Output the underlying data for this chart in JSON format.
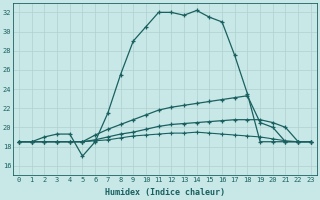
{
  "xlabel": "Humidex (Indice chaleur)",
  "bg_color": "#c8e8e8",
  "grid_color": "#b0d0d0",
  "line_color": "#1a6060",
  "xlim": [
    -0.5,
    23.5
  ],
  "ylim": [
    15,
    33
  ],
  "yticks": [
    16,
    18,
    20,
    22,
    24,
    26,
    28,
    30,
    32
  ],
  "xticks": [
    0,
    1,
    2,
    3,
    4,
    5,
    6,
    7,
    8,
    9,
    10,
    11,
    12,
    13,
    14,
    15,
    16,
    17,
    18,
    19,
    20,
    21,
    22,
    23
  ],
  "curve1_x": [
    0,
    1,
    2,
    3,
    4,
    5,
    6,
    7,
    8,
    9,
    10,
    11,
    12,
    13,
    14,
    15,
    16,
    17,
    18,
    19,
    20,
    21,
    22,
    23
  ],
  "curve1_y": [
    18.5,
    18.5,
    19.0,
    19.3,
    19.3,
    17.0,
    18.5,
    21.5,
    25.5,
    29.0,
    30.5,
    32.0,
    32.0,
    31.7,
    32.2,
    31.5,
    31.0,
    27.5,
    23.5,
    18.5,
    18.5,
    18.5,
    18.5,
    18.5
  ],
  "curve2_x": [
    0,
    1,
    2,
    3,
    4,
    5,
    6,
    7,
    8,
    9,
    10,
    11,
    12,
    13,
    14,
    15,
    16,
    17,
    18,
    19,
    20,
    21,
    22,
    23
  ],
  "curve2_y": [
    18.5,
    18.5,
    18.5,
    18.5,
    18.5,
    18.5,
    19.2,
    19.8,
    20.3,
    20.8,
    21.3,
    21.8,
    22.1,
    22.3,
    22.5,
    22.7,
    22.9,
    23.1,
    23.3,
    20.5,
    20.0,
    18.5,
    18.5,
    18.5
  ],
  "curve3_x": [
    0,
    1,
    2,
    3,
    4,
    5,
    6,
    7,
    8,
    9,
    10,
    11,
    12,
    13,
    14,
    15,
    16,
    17,
    18,
    19,
    20,
    21,
    22,
    23
  ],
  "curve3_y": [
    18.5,
    18.5,
    18.5,
    18.5,
    18.5,
    18.5,
    18.7,
    19.0,
    19.3,
    19.5,
    19.8,
    20.1,
    20.3,
    20.4,
    20.5,
    20.6,
    20.7,
    20.8,
    20.8,
    20.8,
    20.5,
    20.0,
    18.5,
    18.5
  ],
  "curve4_x": [
    0,
    1,
    2,
    3,
    4,
    5,
    6,
    7,
    8,
    9,
    10,
    11,
    12,
    13,
    14,
    15,
    16,
    17,
    18,
    19,
    20,
    21,
    22,
    23
  ],
  "curve4_y": [
    18.5,
    18.5,
    18.5,
    18.5,
    18.5,
    18.5,
    18.6,
    18.7,
    18.9,
    19.1,
    19.2,
    19.3,
    19.4,
    19.4,
    19.5,
    19.4,
    19.3,
    19.2,
    19.1,
    19.0,
    18.8,
    18.6,
    18.5,
    18.5
  ]
}
